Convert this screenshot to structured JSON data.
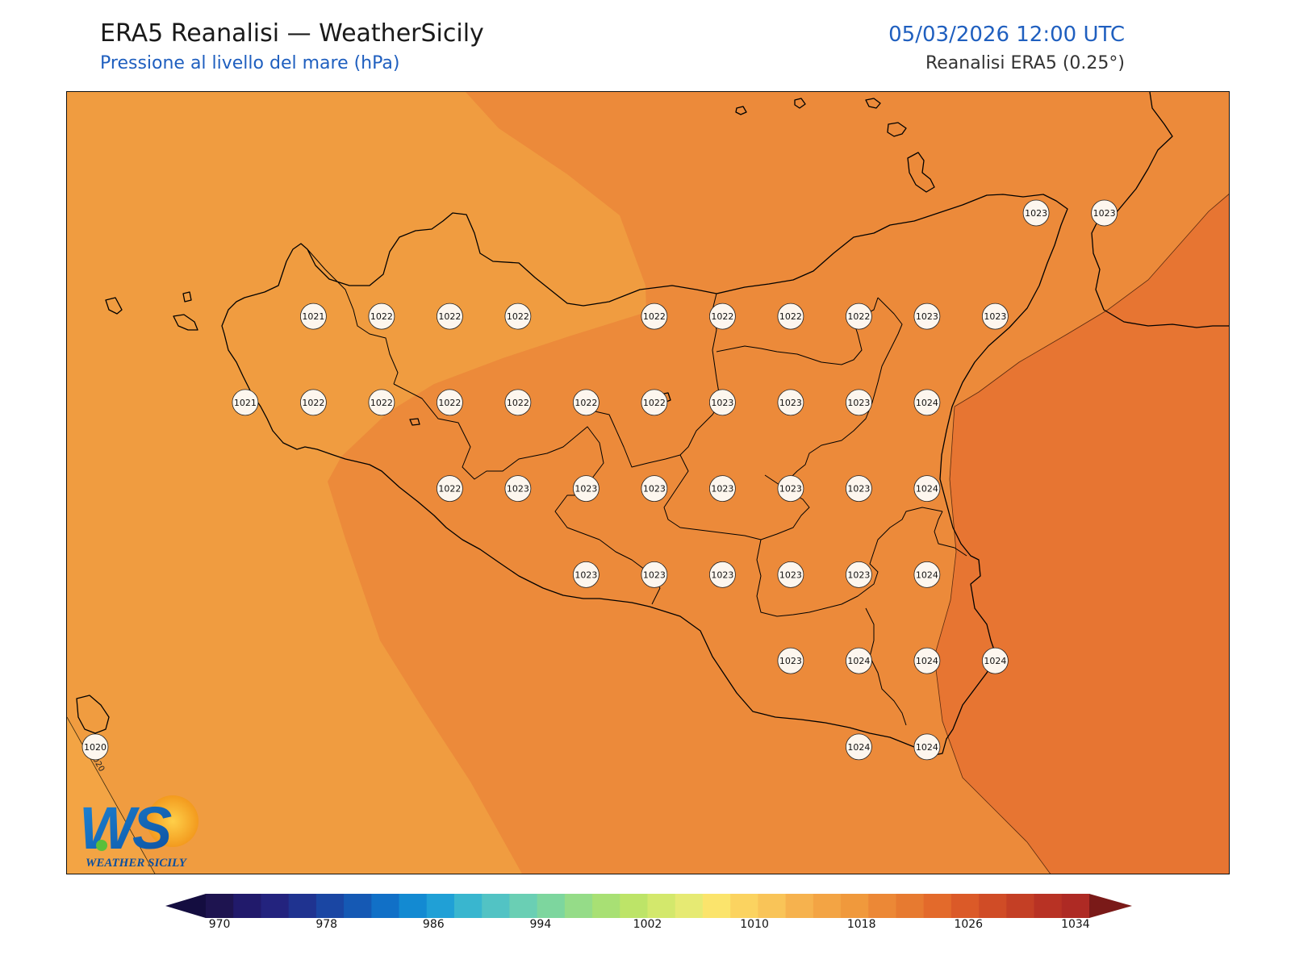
{
  "header": {
    "title": "ERA5 Reanalisi — WeatherSicily",
    "subtitle": "Pressione al livello del mare (hPa)",
    "datetime": "05/03/2026 12:00 UTC",
    "source": "Reanalisi ERA5 (0.25°)"
  },
  "logo": {
    "text": "WEATHER SICILY",
    "mark": "WS"
  },
  "colorbar": {
    "min": 970,
    "max": 1034,
    "step": 2,
    "tick_labels": [
      "970",
      "978",
      "986",
      "994",
      "1002",
      "1010",
      "1018",
      "1026",
      "1034"
    ],
    "colors": [
      "#1e1450",
      "#211a6b",
      "#23237e",
      "#1f3390",
      "#1a46a3",
      "#1559b4",
      "#1170c7",
      "#138ad2",
      "#20a0d6",
      "#39b6cf",
      "#52c3c4",
      "#6acfb4",
      "#7dd69e",
      "#95dc88",
      "#a8e074",
      "#bde468",
      "#d3e86c",
      "#e6ea73",
      "#fbe46c",
      "#fbd360",
      "#f9c458",
      "#f6b24e",
      "#f3a444",
      "#f0993c",
      "#ec8836",
      "#e77a30",
      "#e36a2b",
      "#db5a28",
      "#d04c26",
      "#c43f25",
      "#b83224",
      "#ae2a24"
    ],
    "under_color": "#140d40",
    "over_color": "#7a1a18"
  },
  "map": {
    "fill_levels": [
      {
        "level": "1018-1020",
        "color": "#f3a444"
      },
      {
        "level": "1020-1022",
        "color": "#f09c40"
      },
      {
        "level": "1022-1024",
        "color": "#ec8a3a"
      },
      {
        "level": "1024-1026",
        "color": "#e77532"
      }
    ],
    "contour_label": "1020",
    "stations": [
      {
        "value": "1023",
        "lon": 15.4,
        "lat": 38.3
      },
      {
        "value": "1023",
        "lon": 15.65,
        "lat": 38.3
      },
      {
        "value": "1021",
        "lon": 12.75,
        "lat": 38.0
      },
      {
        "value": "1022",
        "lon": 13.0,
        "lat": 38.0
      },
      {
        "value": "1022",
        "lon": 13.25,
        "lat": 38.0
      },
      {
        "value": "1022",
        "lon": 13.5,
        "lat": 38.0
      },
      {
        "value": "1022",
        "lon": 14.0,
        "lat": 38.0
      },
      {
        "value": "1022",
        "lon": 14.25,
        "lat": 38.0
      },
      {
        "value": "1022",
        "lon": 14.5,
        "lat": 38.0
      },
      {
        "value": "1022",
        "lon": 14.75,
        "lat": 38.0
      },
      {
        "value": "1023",
        "lon": 15.0,
        "lat": 38.0
      },
      {
        "value": "1023",
        "lon": 15.25,
        "lat": 38.0
      },
      {
        "value": "1021",
        "lon": 12.5,
        "lat": 37.75
      },
      {
        "value": "1022",
        "lon": 12.75,
        "lat": 37.75
      },
      {
        "value": "1022",
        "lon": 13.0,
        "lat": 37.75
      },
      {
        "value": "1022",
        "lon": 13.25,
        "lat": 37.75
      },
      {
        "value": "1022",
        "lon": 13.5,
        "lat": 37.75
      },
      {
        "value": "1022",
        "lon": 13.75,
        "lat": 37.75
      },
      {
        "value": "1022",
        "lon": 14.0,
        "lat": 37.75
      },
      {
        "value": "1023",
        "lon": 14.25,
        "lat": 37.75
      },
      {
        "value": "1023",
        "lon": 14.5,
        "lat": 37.75
      },
      {
        "value": "1023",
        "lon": 14.75,
        "lat": 37.75
      },
      {
        "value": "1024",
        "lon": 15.0,
        "lat": 37.75
      },
      {
        "value": "1022",
        "lon": 13.25,
        "lat": 37.5
      },
      {
        "value": "1023",
        "lon": 13.5,
        "lat": 37.5
      },
      {
        "value": "1023",
        "lon": 13.75,
        "lat": 37.5
      },
      {
        "value": "1023",
        "lon": 14.0,
        "lat": 37.5
      },
      {
        "value": "1023",
        "lon": 14.25,
        "lat": 37.5
      },
      {
        "value": "1023",
        "lon": 14.5,
        "lat": 37.5
      },
      {
        "value": "1023",
        "lon": 14.75,
        "lat": 37.5
      },
      {
        "value": "1024",
        "lon": 15.0,
        "lat": 37.5
      },
      {
        "value": "1023",
        "lon": 13.75,
        "lat": 37.25
      },
      {
        "value": "1023",
        "lon": 14.0,
        "lat": 37.25
      },
      {
        "value": "1023",
        "lon": 14.25,
        "lat": 37.25
      },
      {
        "value": "1023",
        "lon": 14.5,
        "lat": 37.25
      },
      {
        "value": "1023",
        "lon": 14.75,
        "lat": 37.25
      },
      {
        "value": "1024",
        "lon": 15.0,
        "lat": 37.25
      },
      {
        "value": "1023",
        "lon": 14.5,
        "lat": 37.0
      },
      {
        "value": "1024",
        "lon": 14.75,
        "lat": 37.0
      },
      {
        "value": "1024",
        "lon": 15.0,
        "lat": 37.0
      },
      {
        "value": "1024",
        "lon": 15.25,
        "lat": 37.0
      },
      {
        "value": "1020",
        "lon": 11.95,
        "lat": 36.75
      },
      {
        "value": "1024",
        "lon": 14.75,
        "lat": 36.75
      },
      {
        "value": "1024",
        "lon": 15.0,
        "lat": 36.75
      }
    ]
  }
}
